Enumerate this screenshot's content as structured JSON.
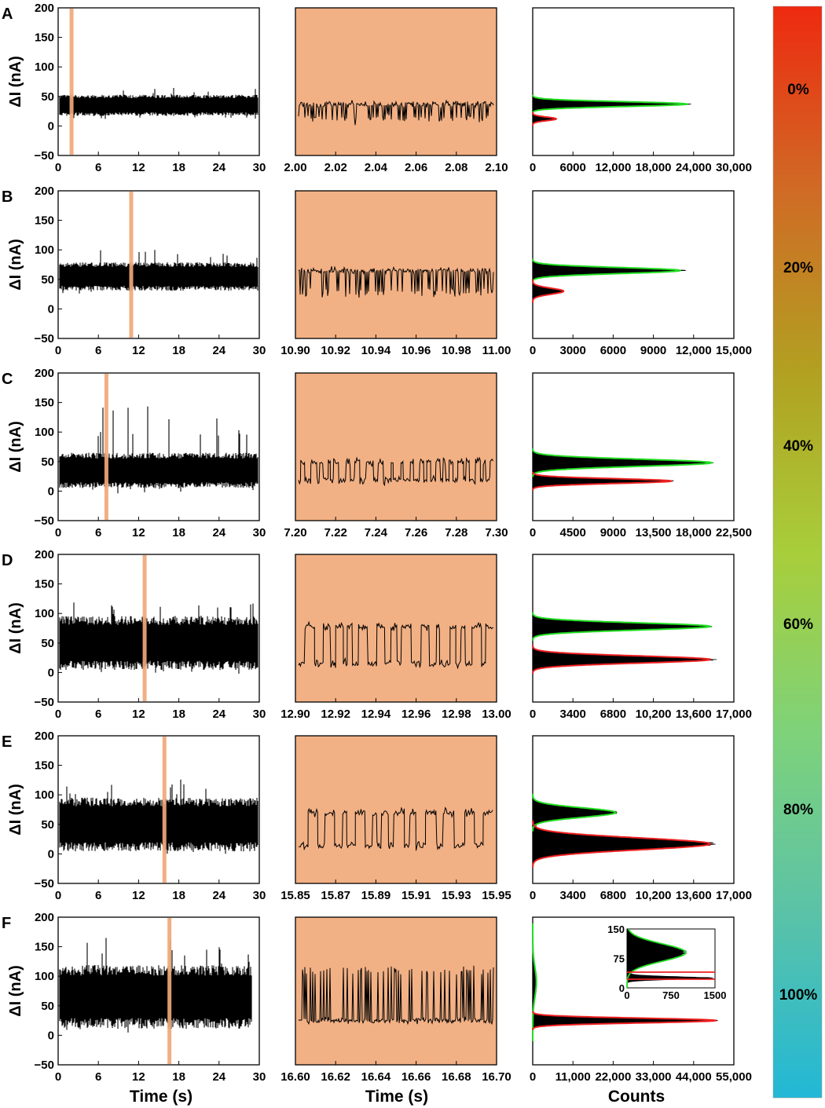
{
  "figure": {
    "y_axis_label": "ΔI (nA)",
    "bottom_labels": {
      "trace": "Time (s)",
      "zoom": "Time (s)",
      "hist": "Counts"
    },
    "colors": {
      "highlight": "#f2b185",
      "bar": "#f0a878",
      "trace": "#000000",
      "fit_high": "#22dd22",
      "fit_low": "#ee2020"
    }
  },
  "colorbar": {
    "labels": [
      "0%",
      "20%",
      "40%",
      "60%",
      "80%",
      "100%"
    ],
    "stops": [
      "#ee2a10",
      "#d06a25",
      "#b2a021",
      "#a8ce3a",
      "#7ed27a",
      "#5ac2a8",
      "#22b8d6"
    ]
  },
  "chart_data": [
    {
      "panel": "A",
      "type": "line",
      "xlabel": "",
      "ylabel": "ΔI (nA)",
      "trace": {
        "xlim": [
          0,
          30
        ],
        "ylim": [
          -50,
          200
        ],
        "x_ticks": [
          "0",
          "6",
          "12",
          "18",
          "24",
          "30"
        ],
        "y_ticks": [
          "200",
          "150",
          "100",
          "50",
          "0",
          "−50"
        ],
        "highlight_window": [
          2.0,
          2.1
        ],
        "end_time": 30,
        "base_level": 35,
        "spread": 15,
        "spike_max": 65
      },
      "zoom": {
        "xlim": [
          2.0,
          2.1
        ],
        "x_ticks": [
          "2.00",
          "2.02",
          "2.04",
          "2.06",
          "2.08",
          "2.10"
        ],
        "levels": [
          37,
          12
        ],
        "mode": "spikes",
        "event_count": 70
      },
      "hist": {
        "x_ticks": [
          "0",
          "6000",
          "12,000",
          "18,000",
          "24,000",
          "30,000"
        ],
        "xmax": 30000,
        "fits": [
          {
            "color": "green",
            "mu": 37,
            "sigma": 4,
            "peak": 23000
          },
          {
            "color": "red",
            "mu": 12,
            "sigma": 3,
            "peak": 3500
          }
        ]
      }
    },
    {
      "panel": "B",
      "type": "line",
      "xlabel": "",
      "ylabel": "ΔI (nA)",
      "trace": {
        "xlim": [
          0,
          30
        ],
        "ylim": [
          -50,
          200
        ],
        "x_ticks": [
          "0",
          "6",
          "12",
          "18",
          "24",
          "30"
        ],
        "y_ticks": [
          "200",
          "150",
          "100",
          "50",
          "0",
          "−50"
        ],
        "highlight_window": [
          10.9,
          11.0
        ],
        "end_time": 30,
        "base_level": 55,
        "spread": 20,
        "spike_max": 105
      },
      "zoom": {
        "xlim": [
          10.9,
          11.0
        ],
        "x_ticks": [
          "10.90",
          "10.92",
          "10.94",
          "10.96",
          "10.98",
          "11.00"
        ],
        "levels": [
          65,
          28
        ],
        "mode": "spikes",
        "event_count": 80
      },
      "hist": {
        "x_ticks": [
          "0",
          "3000",
          "6000",
          "9000",
          "12,000",
          "15,000"
        ],
        "xmax": 15000,
        "fits": [
          {
            "color": "green",
            "mu": 65,
            "sigma": 5,
            "peak": 11000
          },
          {
            "color": "red",
            "mu": 30,
            "sigma": 5,
            "peak": 2300
          }
        ]
      }
    },
    {
      "panel": "C",
      "type": "line",
      "xlabel": "",
      "ylabel": "ΔI (nA)",
      "trace": {
        "xlim": [
          0,
          30
        ],
        "ylim": [
          -50,
          200
        ],
        "x_ticks": [
          "0",
          "6",
          "12",
          "18",
          "24",
          "30"
        ],
        "y_ticks": [
          "200",
          "150",
          "100",
          "50",
          "0",
          "−50"
        ],
        "highlight_window": [
          7.2,
          7.3
        ],
        "end_time": 30,
        "base_level": 35,
        "spread": 25,
        "spike_max": 145
      },
      "zoom": {
        "xlim": [
          7.2,
          7.3
        ],
        "x_ticks": [
          "7.20",
          "7.22",
          "7.24",
          "7.26",
          "7.28",
          "7.30"
        ],
        "levels": [
          50,
          18
        ],
        "mode": "telegraph",
        "event_count": 22
      },
      "hist": {
        "x_ticks": [
          "0",
          "4500",
          "9000",
          "13,500",
          "18,000",
          "22,500"
        ],
        "xmax": 22500,
        "fits": [
          {
            "color": "green",
            "mu": 48,
            "sigma": 6,
            "peak": 20000
          },
          {
            "color": "red",
            "mu": 17,
            "sigma": 4,
            "peak": 15500
          }
        ]
      }
    },
    {
      "panel": "D",
      "type": "line",
      "xlabel": "",
      "ylabel": "ΔI (nA)",
      "trace": {
        "xlim": [
          0,
          30
        ],
        "ylim": [
          -50,
          200
        ],
        "x_ticks": [
          "0",
          "6",
          "12",
          "18",
          "24",
          "30"
        ],
        "y_ticks": [
          "200",
          "150",
          "100",
          "50",
          "0",
          "−50"
        ],
        "highlight_window": [
          12.9,
          13.0
        ],
        "end_time": 30,
        "base_level": 50,
        "spread": 38,
        "spike_max": 120
      },
      "zoom": {
        "xlim": [
          12.9,
          13.0
        ],
        "x_ticks": [
          "12.90",
          "12.92",
          "12.94",
          "12.96",
          "12.98",
          "13.00"
        ],
        "levels": [
          78,
          15
        ],
        "mode": "telegraph",
        "event_count": 14
      },
      "hist": {
        "x_ticks": [
          "0",
          "3400",
          "6800",
          "10,200",
          "13,600",
          "17,000"
        ],
        "xmax": 17000,
        "fits": [
          {
            "color": "green",
            "mu": 78,
            "sigma": 6,
            "peak": 15000
          },
          {
            "color": "red",
            "mu": 22,
            "sigma": 6,
            "peak": 15000
          }
        ]
      }
    },
    {
      "panel": "E",
      "type": "line",
      "xlabel": "",
      "ylabel": "ΔI (nA)",
      "trace": {
        "xlim": [
          0,
          30
        ],
        "ylim": [
          -50,
          200
        ],
        "x_ticks": [
          "0",
          "6",
          "12",
          "18",
          "24",
          "30"
        ],
        "y_ticks": [
          "200",
          "150",
          "100",
          "50",
          "0",
          "−50"
        ],
        "highlight_window": [
          15.85,
          15.95
        ],
        "end_time": 30,
        "base_level": 50,
        "spread": 38,
        "spike_max": 128
      },
      "zoom": {
        "xlim": [
          15.85,
          15.95
        ],
        "x_ticks": [
          "15.85",
          "15.87",
          "15.89",
          "15.91",
          "15.93",
          "15.95"
        ],
        "levels": [
          70,
          14
        ],
        "mode": "telegraph",
        "event_count": 12
      },
      "hist": {
        "x_ticks": [
          "0",
          "3400",
          "6800",
          "10,200",
          "13,600",
          "17,000"
        ],
        "xmax": 17000,
        "fits": [
          {
            "color": "green",
            "mu": 70,
            "sigma": 8,
            "peak": 7000
          },
          {
            "color": "red",
            "mu": 17,
            "sigma": 10,
            "peak": 15000
          }
        ]
      }
    },
    {
      "panel": "F",
      "type": "line",
      "xlabel": "Time (s)",
      "ylabel": "ΔI (nA)",
      "trace": {
        "xlim": [
          0,
          30
        ],
        "ylim": [
          -50,
          200
        ],
        "x_ticks": [
          "0",
          "6",
          "12",
          "18",
          "24",
          "30"
        ],
        "y_ticks": [
          "200",
          "150",
          "100",
          "50",
          "0",
          "−50"
        ],
        "highlight_window": [
          16.6,
          16.7
        ],
        "end_time": 29,
        "base_level": 65,
        "spread": 45,
        "spike_max": 165
      },
      "zoom": {
        "xlim": [
          16.6,
          16.7
        ],
        "x_ticks": [
          "16.60",
          "16.62",
          "16.64",
          "16.66",
          "16.68",
          "16.70"
        ],
        "levels": [
          25,
          110
        ],
        "mode": "spikes_up",
        "event_count": 60
      },
      "hist": {
        "x_ticks": [
          "0",
          "11,000",
          "22,000",
          "33,000",
          "44,000",
          "55,000"
        ],
        "xmax": 55000,
        "fits": [
          {
            "color": "green",
            "mu": 90,
            "sigma": 25,
            "peak": 1000
          },
          {
            "color": "red",
            "mu": 25,
            "sigma": 4,
            "peak": 50000
          }
        ],
        "inset": {
          "x_ticks": [
            "0",
            "750",
            "1500"
          ],
          "y_ticks": [
            "150",
            "75",
            "0"
          ],
          "xlim": [
            0,
            1500
          ],
          "ylim": [
            0,
            150
          ]
        }
      }
    }
  ]
}
